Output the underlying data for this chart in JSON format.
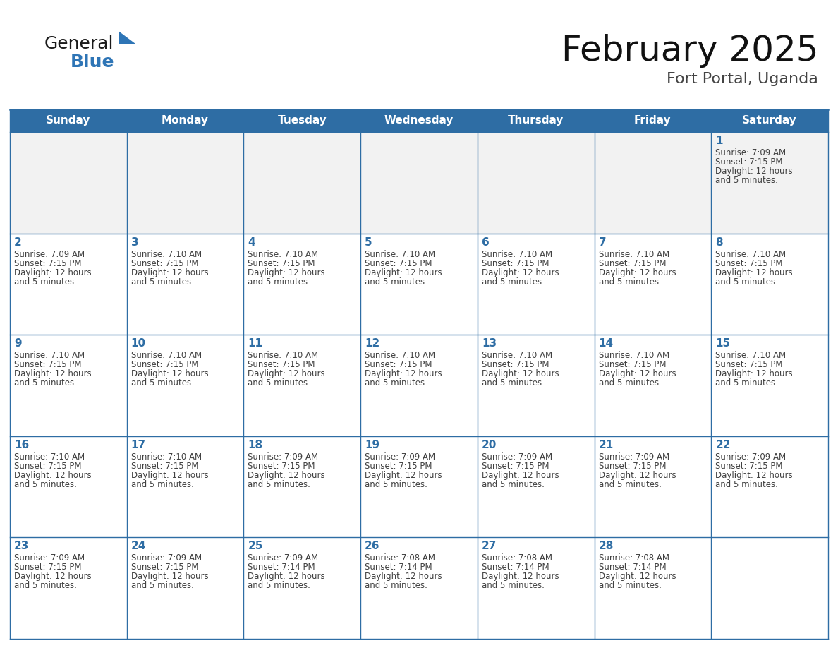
{
  "title": "February 2025",
  "subtitle": "Fort Portal, Uganda",
  "days_of_week": [
    "Sunday",
    "Monday",
    "Tuesday",
    "Wednesday",
    "Thursday",
    "Friday",
    "Saturday"
  ],
  "header_bg_color": "#2E6DA4",
  "header_text_color": "#FFFFFF",
  "cell_bg_color": "#FFFFFF",
  "row1_bg_color": "#F0F0F0",
  "grid_line_color": "#2E6DA4",
  "day_number_color": "#2E6DA4",
  "cell_text_color": "#404040",
  "title_color": "#111111",
  "subtitle_color": "#444444",
  "logo_general_color": "#1a1a1a",
  "logo_blue_color": "#2E75B6",
  "calendar": [
    [
      null,
      null,
      null,
      null,
      null,
      null,
      1
    ],
    [
      2,
      3,
      4,
      5,
      6,
      7,
      8
    ],
    [
      9,
      10,
      11,
      12,
      13,
      14,
      15
    ],
    [
      16,
      17,
      18,
      19,
      20,
      21,
      22
    ],
    [
      23,
      24,
      25,
      26,
      27,
      28,
      null
    ]
  ],
  "sunrise": {
    "1": "7:09 AM",
    "2": "7:09 AM",
    "3": "7:10 AM",
    "4": "7:10 AM",
    "5": "7:10 AM",
    "6": "7:10 AM",
    "7": "7:10 AM",
    "8": "7:10 AM",
    "9": "7:10 AM",
    "10": "7:10 AM",
    "11": "7:10 AM",
    "12": "7:10 AM",
    "13": "7:10 AM",
    "14": "7:10 AM",
    "15": "7:10 AM",
    "16": "7:10 AM",
    "17": "7:10 AM",
    "18": "7:09 AM",
    "19": "7:09 AM",
    "20": "7:09 AM",
    "21": "7:09 AM",
    "22": "7:09 AM",
    "23": "7:09 AM",
    "24": "7:09 AM",
    "25": "7:09 AM",
    "26": "7:08 AM",
    "27": "7:08 AM",
    "28": "7:08 AM"
  },
  "sunset": {
    "1": "7:15 PM",
    "2": "7:15 PM",
    "3": "7:15 PM",
    "4": "7:15 PM",
    "5": "7:15 PM",
    "6": "7:15 PM",
    "7": "7:15 PM",
    "8": "7:15 PM",
    "9": "7:15 PM",
    "10": "7:15 PM",
    "11": "7:15 PM",
    "12": "7:15 PM",
    "13": "7:15 PM",
    "14": "7:15 PM",
    "15": "7:15 PM",
    "16": "7:15 PM",
    "17": "7:15 PM",
    "18": "7:15 PM",
    "19": "7:15 PM",
    "20": "7:15 PM",
    "21": "7:15 PM",
    "22": "7:15 PM",
    "23": "7:15 PM",
    "24": "7:15 PM",
    "25": "7:14 PM",
    "26": "7:14 PM",
    "27": "7:14 PM",
    "28": "7:14 PM"
  },
  "daylight": {
    "1": "12 hours and 5 minutes.",
    "2": "12 hours and 5 minutes.",
    "3": "12 hours and 5 minutes.",
    "4": "12 hours and 5 minutes.",
    "5": "12 hours and 5 minutes.",
    "6": "12 hours and 5 minutes.",
    "7": "12 hours and 5 minutes.",
    "8": "12 hours and 5 minutes.",
    "9": "12 hours and 5 minutes.",
    "10": "12 hours and 5 minutes.",
    "11": "12 hours and 5 minutes.",
    "12": "12 hours and 5 minutes.",
    "13": "12 hours and 5 minutes.",
    "14": "12 hours and 5 minutes.",
    "15": "12 hours and 5 minutes.",
    "16": "12 hours and 5 minutes.",
    "17": "12 hours and 5 minutes.",
    "18": "12 hours and 5 minutes.",
    "19": "12 hours and 5 minutes.",
    "20": "12 hours and 5 minutes.",
    "21": "12 hours and 5 minutes.",
    "22": "12 hours and 5 minutes.",
    "23": "12 hours and 5 minutes.",
    "24": "12 hours and 5 minutes.",
    "25": "12 hours and 5 minutes.",
    "26": "12 hours and 5 minutes.",
    "27": "12 hours and 5 minutes.",
    "28": "12 hours and 5 minutes."
  }
}
